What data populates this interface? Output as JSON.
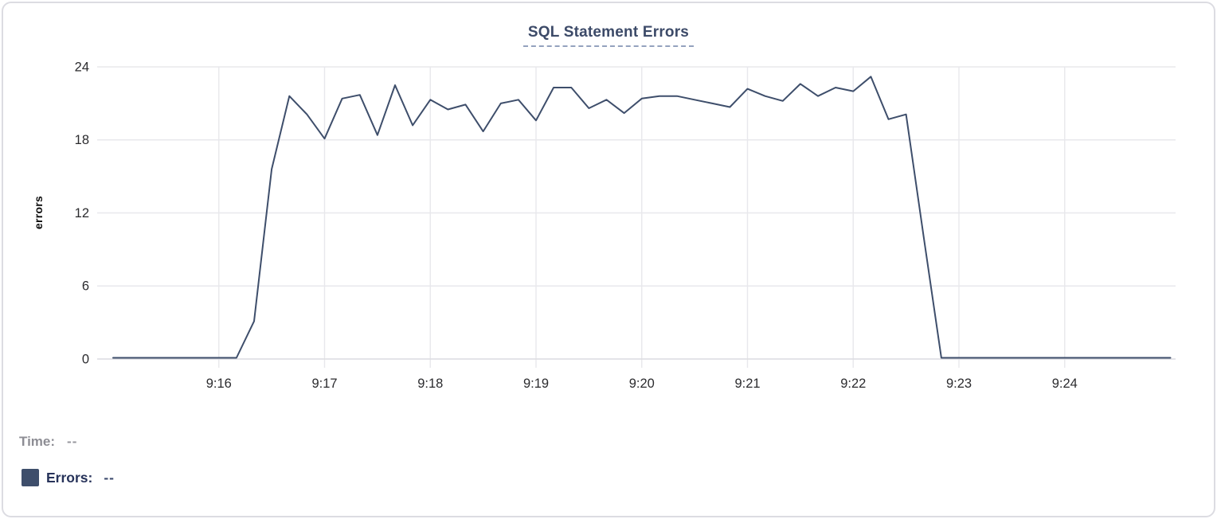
{
  "title": "SQL Statement Errors",
  "legend": {
    "time_label": "Time:",
    "time_value": "--",
    "errors_label": "Errors:",
    "errors_value": "--",
    "swatch_color": "#3e4e6b"
  },
  "colors": {
    "series_line": "#3e4e6b",
    "grid_line": "#e8e8ec",
    "axis_line": "#dcdce0",
    "tick_label": "#2b2b2e",
    "title_text": "#3c4a68",
    "title_underline": "#94a2be",
    "card_border": "#dcdce2"
  },
  "chart_data": {
    "type": "line",
    "title": "SQL Statement Errors",
    "xlabel": "",
    "ylabel": "errors",
    "ylim": [
      0,
      24
    ],
    "yticks": [
      0,
      6,
      12,
      18,
      24
    ],
    "xticks": [
      "9:16",
      "9:17",
      "9:18",
      "9:19",
      "9:20",
      "9:21",
      "9:22",
      "9:23",
      "9:24"
    ],
    "x_domain": [
      "9:15:00",
      "9:25:00"
    ],
    "grid": true,
    "legend_position": "bottom-left",
    "series": [
      {
        "name": "Errors",
        "color": "#3e4e6b",
        "x": [
          "9:15:00",
          "9:15:10",
          "9:15:20",
          "9:15:30",
          "9:15:40",
          "9:15:50",
          "9:16:00",
          "9:16:10",
          "9:16:20",
          "9:16:30",
          "9:16:40",
          "9:16:50",
          "9:17:00",
          "9:17:10",
          "9:17:20",
          "9:17:30",
          "9:17:40",
          "9:17:50",
          "9:18:00",
          "9:18:10",
          "9:18:20",
          "9:18:30",
          "9:18:40",
          "9:18:50",
          "9:19:00",
          "9:19:10",
          "9:19:20",
          "9:19:30",
          "9:19:40",
          "9:19:50",
          "9:20:00",
          "9:20:10",
          "9:20:20",
          "9:20:30",
          "9:20:40",
          "9:20:50",
          "9:21:00",
          "9:21:10",
          "9:21:20",
          "9:21:30",
          "9:21:40",
          "9:21:50",
          "9:22:00",
          "9:22:10",
          "9:22:20",
          "9:22:30",
          "9:22:40",
          "9:22:50",
          "9:23:00",
          "9:23:10",
          "9:23:20",
          "9:23:30",
          "9:23:40",
          "9:23:50",
          "9:24:00",
          "9:24:10",
          "9:24:20",
          "9:24:30",
          "9:24:40",
          "9:24:50",
          "9:25:00"
        ],
        "values": [
          0,
          0,
          0,
          0,
          0,
          0,
          0,
          0,
          3,
          15.5,
          21.5,
          20,
          18,
          21.3,
          21.6,
          18.3,
          22.4,
          19.1,
          21.2,
          20.4,
          20.8,
          18.6,
          20.9,
          21.2,
          19.5,
          22.2,
          22.2,
          20.5,
          21.2,
          20.1,
          21.3,
          21.5,
          21.5,
          21.2,
          20.9,
          20.6,
          22.1,
          21.5,
          21.1,
          22.5,
          21.5,
          22.2,
          21.9,
          23.1,
          19.6,
          20.0,
          9.9,
          0,
          0,
          0,
          0,
          0,
          0,
          0,
          0,
          0,
          0,
          0,
          0,
          0,
          0
        ]
      }
    ]
  }
}
